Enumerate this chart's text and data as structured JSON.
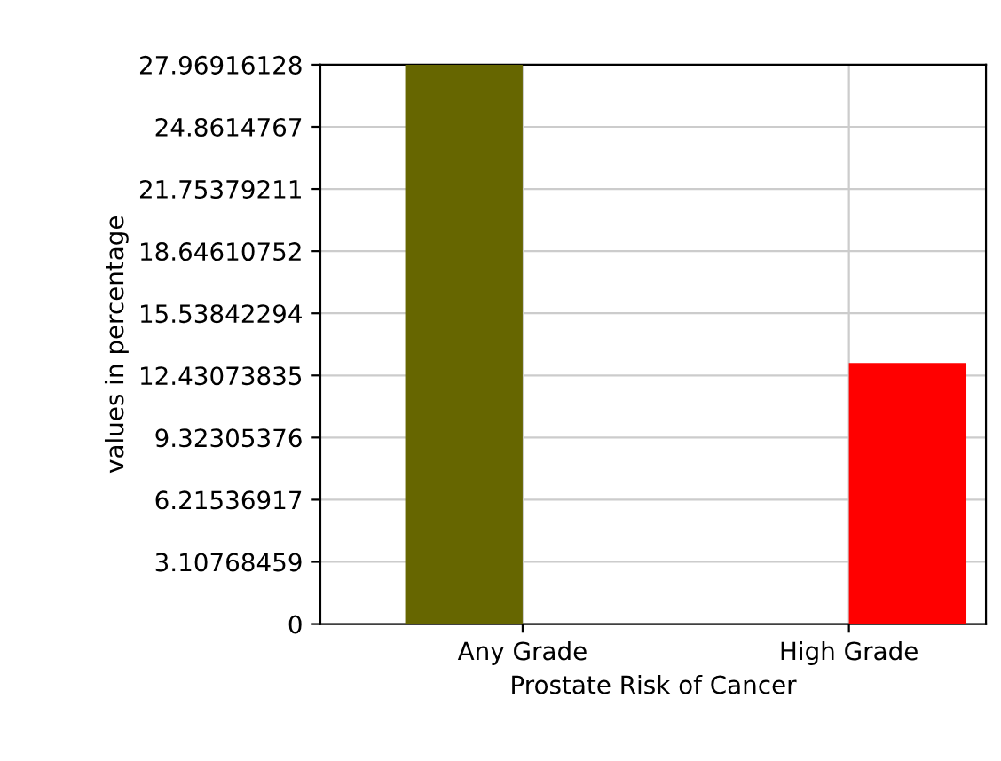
{
  "chart_data": {
    "type": "bar",
    "xlabel": "Prostate Risk of Cancer",
    "ylabel": "values in percentage",
    "categories": [
      "Any Grade",
      "High Grade"
    ],
    "series": [
      {
        "color": "#666600",
        "values": [
          27.96916128,
          null
        ]
      },
      {
        "color": "#ff0000",
        "values": [
          null,
          13.05
        ]
      }
    ],
    "ylim": [
      0,
      27.96916128
    ],
    "yticks": [
      0,
      3.10768459,
      6.21536917,
      9.32305376,
      12.43073835,
      15.53842294,
      18.64610752,
      21.75379211,
      24.8614767,
      27.96916128
    ],
    "grid": true,
    "legend": false
  }
}
